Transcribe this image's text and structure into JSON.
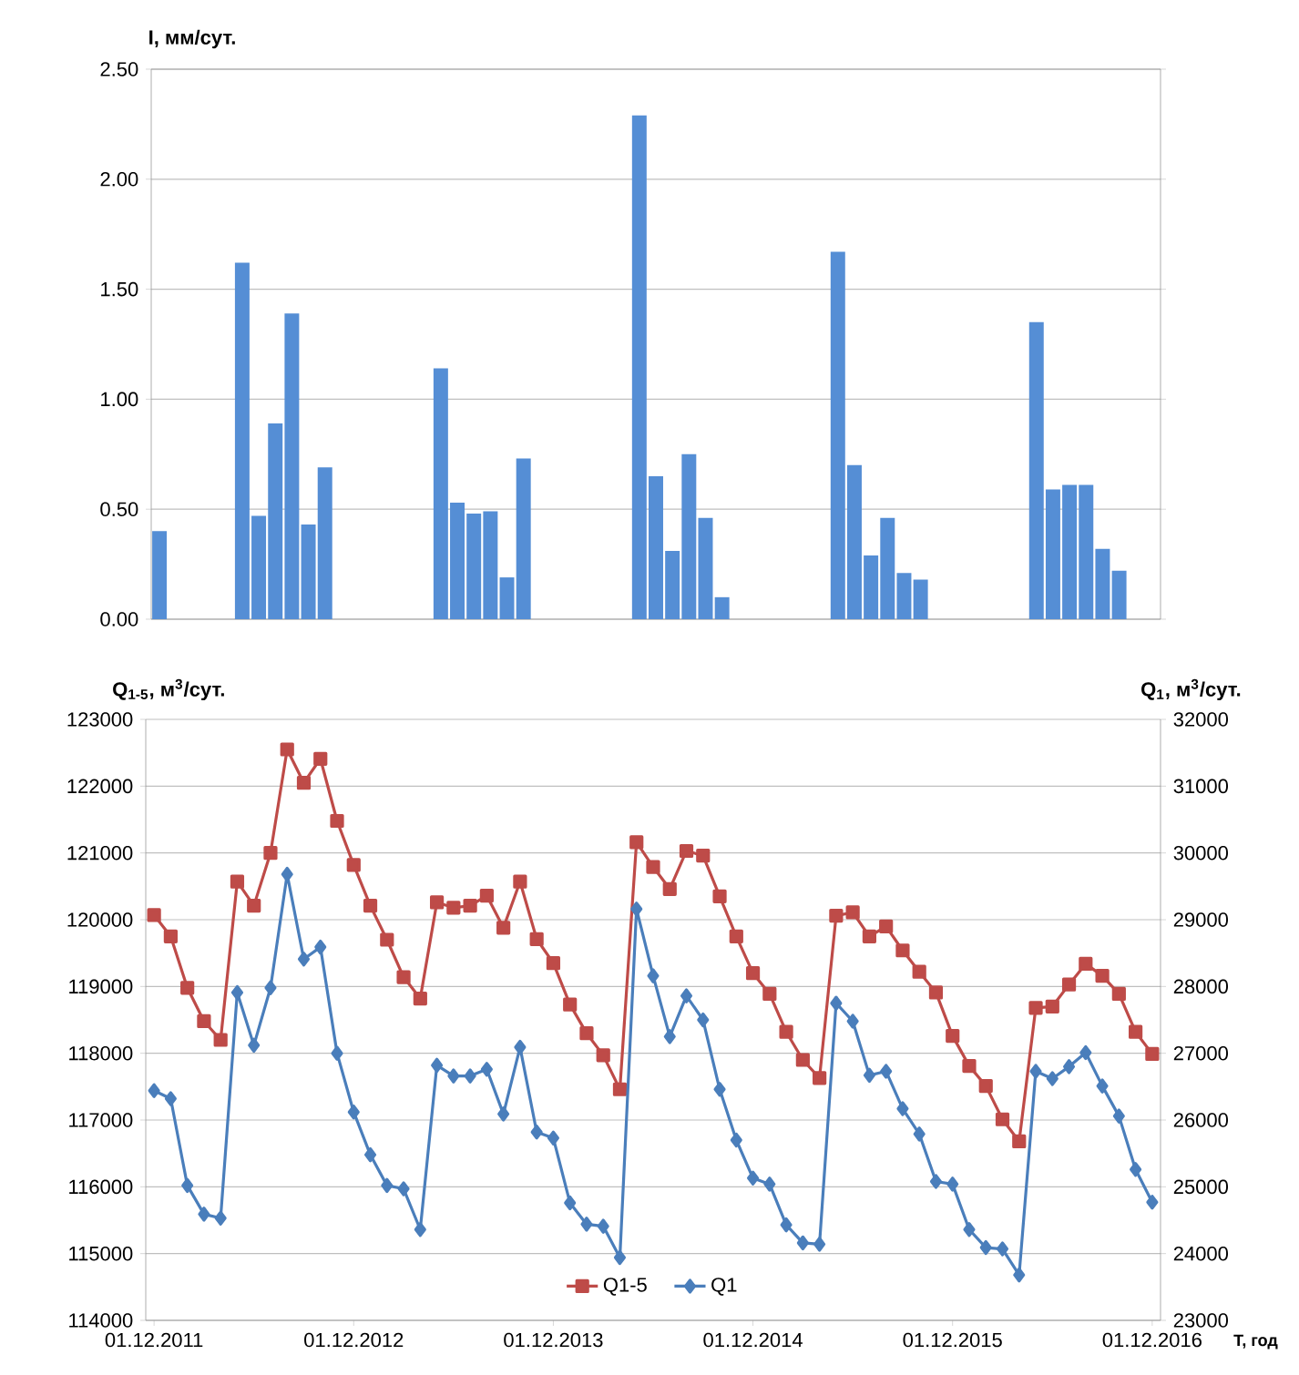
{
  "chart_data": [
    {
      "type": "bar",
      "ylabel": "I, мм/сут.",
      "color": "#558ed5",
      "grid": "y",
      "categories": [
        null,
        null,
        null,
        null,
        null,
        null,
        null,
        null,
        null,
        null,
        null,
        null,
        null,
        null,
        null,
        null,
        null,
        null,
        null,
        null,
        null,
        null,
        null,
        null,
        null,
        null,
        null,
        null,
        null,
        null,
        null,
        null,
        null,
        null,
        null,
        null,
        null,
        null,
        null,
        null,
        null,
        null,
        null,
        null,
        null,
        null,
        null,
        null,
        null,
        null,
        null,
        null,
        null,
        null,
        null,
        null,
        null,
        null,
        null,
        null,
        null
      ],
      "values": [
        0.4,
        null,
        null,
        null,
        null,
        1.62,
        0.47,
        0.89,
        1.39,
        0.43,
        0.69,
        null,
        null,
        null,
        null,
        null,
        null,
        1.14,
        0.53,
        0.48,
        0.49,
        0.19,
        0.73,
        null,
        null,
        null,
        null,
        null,
        null,
        2.29,
        0.65,
        0.31,
        0.75,
        0.46,
        0.1,
        null,
        null,
        null,
        null,
        null,
        null,
        1.67,
        0.7,
        0.29,
        0.46,
        0.21,
        0.18,
        null,
        null,
        null,
        null,
        null,
        null,
        1.35,
        0.59,
        0.61,
        0.61,
        0.32,
        0.22,
        null,
        null
      ],
      "ylim": [
        0,
        2.5
      ],
      "yticks": [
        {
          "value": 0,
          "label": "0.00"
        },
        {
          "value": 0.5,
          "label": "0.50"
        },
        {
          "value": 1,
          "label": "1.00"
        },
        {
          "value": 1.5,
          "label": "1.50"
        },
        {
          "value": 2,
          "label": "2.00"
        },
        {
          "value": 2.5,
          "label": "2.50"
        }
      ],
      "tick_labels": "y"
    },
    {
      "type": "line",
      "ylabel": "Q$_{1-5}$, м$^{3}$/сут.",
      "y2label": "Q$_{1}$, м$^{3}$/сут.",
      "xlabel": "Т, год",
      "grid": "y",
      "legend": "bottom",
      "categories": [
        "01.12.2011",
        null,
        null,
        null,
        null,
        null,
        null,
        null,
        null,
        null,
        null,
        null,
        "01.12.2012",
        null,
        null,
        null,
        null,
        null,
        null,
        null,
        null,
        null,
        null,
        null,
        "01.12.2013",
        null,
        null,
        null,
        null,
        null,
        null,
        null,
        null,
        null,
        null,
        null,
        "01.12.2014",
        null,
        null,
        null,
        null,
        null,
        null,
        null,
        null,
        null,
        null,
        null,
        "01.12.2015",
        null,
        null,
        null,
        null,
        null,
        null,
        null,
        null,
        null,
        null,
        null,
        "01.12.2016"
      ],
      "series": [
        {
          "name": "Q1-5",
          "color": "#be4b48",
          "marker": "square",
          "values": [
            120070,
            119750,
            118980,
            118480,
            118200,
            120570,
            120210,
            121000,
            122550,
            122050,
            122410,
            121480,
            120820,
            120210,
            119700,
            119140,
            118820,
            120260,
            120180,
            120210,
            120360,
            119880,
            120570,
            119710,
            119350,
            118730,
            118300,
            117970,
            117460,
            121160,
            120790,
            120460,
            121030,
            120960,
            120350,
            119750,
            119200,
            118890,
            118320,
            117900,
            117630,
            120060,
            120110,
            119750,
            119900,
            119540,
            119220,
            118910,
            118260,
            117810,
            117510,
            117010,
            116680,
            118680,
            118700,
            119030,
            119340,
            119160,
            118890,
            118320,
            117990
          ]
        },
        {
          "name": "Q1",
          "color": "#4a7ebb",
          "marker": "diamond",
          "axis": "y2",
          "values": [
            26440,
            26320,
            25020,
            24590,
            24530,
            27910,
            27120,
            27980,
            29680,
            28410,
            28590,
            27000,
            26120,
            25480,
            25020,
            24970,
            24360,
            26820,
            26660,
            26660,
            26760,
            26090,
            27090,
            25820,
            25730,
            24760,
            24440,
            24410,
            23940,
            29160,
            28160,
            27250,
            27860,
            27500,
            26460,
            25700,
            25130,
            25040,
            24430,
            24160,
            24140,
            27750,
            27480,
            26670,
            26730,
            26170,
            25790,
            25080,
            25040,
            24360,
            24090,
            24070,
            23680,
            26730,
            26620,
            26800,
            27010,
            26510,
            26060,
            25260,
            24770
          ]
        }
      ],
      "ylim": [
        114000,
        123000
      ],
      "yticks": [
        114000,
        115000,
        116000,
        117000,
        118000,
        119000,
        120000,
        121000,
        122000,
        123000
      ],
      "y2lim": [
        23000,
        32000
      ],
      "y2ticks": [
        23000,
        24000,
        25000,
        26000,
        27000,
        28000,
        29000,
        30000,
        31000,
        32000
      ]
    }
  ]
}
